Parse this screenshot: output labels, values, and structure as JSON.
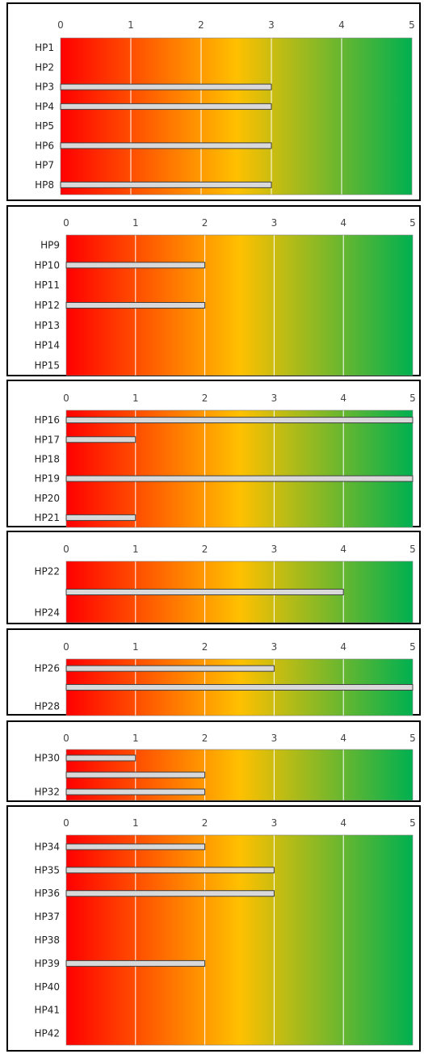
{
  "chart_data": [
    {
      "type": "bar",
      "orientation": "horizontal",
      "xlim": [
        0,
        5
      ],
      "ticks": [
        "0",
        "1",
        "2",
        "3",
        "4",
        "5"
      ],
      "background_gradient": [
        "#ff0000",
        "#ffc000",
        "#00b050"
      ],
      "bar_color": "#d9d9d9",
      "grid": true,
      "categories": [
        "HP1",
        "HP2",
        "HP3",
        "HP4",
        "HP5",
        "HP6",
        "HP7",
        "HP8"
      ],
      "values": [
        0,
        0,
        3,
        3,
        0,
        3,
        0,
        3
      ]
    },
    {
      "type": "bar",
      "orientation": "horizontal",
      "xlim": [
        0,
        5
      ],
      "ticks": [
        "0",
        "1",
        "2",
        "3",
        "4",
        "5"
      ],
      "background_gradient": [
        "#ff0000",
        "#ffc000",
        "#00b050"
      ],
      "bar_color": "#d9d9d9",
      "grid": true,
      "categories": [
        "HP9",
        "HP10",
        "HP11",
        "HP12",
        "HP13",
        "HP14",
        "HP15"
      ],
      "values": [
        0,
        2,
        0,
        2,
        0,
        0,
        0
      ]
    },
    {
      "type": "bar",
      "orientation": "horizontal",
      "xlim": [
        0,
        5
      ],
      "ticks": [
        "0",
        "1",
        "2",
        "3",
        "4",
        "5"
      ],
      "background_gradient": [
        "#ff0000",
        "#ffc000",
        "#00b050"
      ],
      "bar_color": "#d9d9d9",
      "grid": true,
      "categories": [
        "HP16",
        "HP17",
        "HP18",
        "HP19",
        "HP20",
        "HP21"
      ],
      "values": [
        5,
        1,
        0,
        5,
        0,
        1
      ]
    },
    {
      "type": "bar",
      "orientation": "horizontal",
      "xlim": [
        0,
        5
      ],
      "ticks": [
        "0",
        "1",
        "2",
        "3",
        "4",
        "5"
      ],
      "background_gradient": [
        "#ff0000",
        "#ffc000",
        "#00b050"
      ],
      "bar_color": "#d9d9d9",
      "grid": true,
      "categories": [
        "HP22",
        "",
        "HP24"
      ],
      "values": [
        0,
        4,
        0
      ]
    },
    {
      "type": "bar",
      "orientation": "horizontal",
      "xlim": [
        0,
        5
      ],
      "ticks": [
        "0",
        "1",
        "2",
        "3",
        "4",
        "5"
      ],
      "background_gradient": [
        "#ff0000",
        "#ffc000",
        "#00b050"
      ],
      "bar_color": "#d9d9d9",
      "grid": true,
      "categories": [
        "HP26",
        "",
        "HP28"
      ],
      "values": [
        3,
        5,
        0
      ]
    },
    {
      "type": "bar",
      "orientation": "horizontal",
      "xlim": [
        0,
        5
      ],
      "ticks": [
        "0",
        "1",
        "2",
        "3",
        "4",
        "5"
      ],
      "background_gradient": [
        "#ff0000",
        "#ffc000",
        "#00b050"
      ],
      "bar_color": "#d9d9d9",
      "grid": true,
      "categories": [
        "HP30",
        "",
        "HP32"
      ],
      "values": [
        1,
        2,
        2
      ]
    },
    {
      "type": "bar",
      "orientation": "horizontal",
      "xlim": [
        0,
        5
      ],
      "ticks": [
        "0",
        "1",
        "2",
        "3",
        "4",
        "5"
      ],
      "background_gradient": [
        "#ff0000",
        "#ffc000",
        "#00b050"
      ],
      "bar_color": "#d9d9d9",
      "grid": true,
      "categories": [
        "HP34",
        "HP35",
        "HP36",
        "HP37",
        "HP38",
        "HP39",
        "HP40",
        "HP41",
        "HP42"
      ],
      "values": [
        2,
        3,
        3,
        0,
        0,
        2,
        0,
        0,
        0
      ]
    }
  ]
}
